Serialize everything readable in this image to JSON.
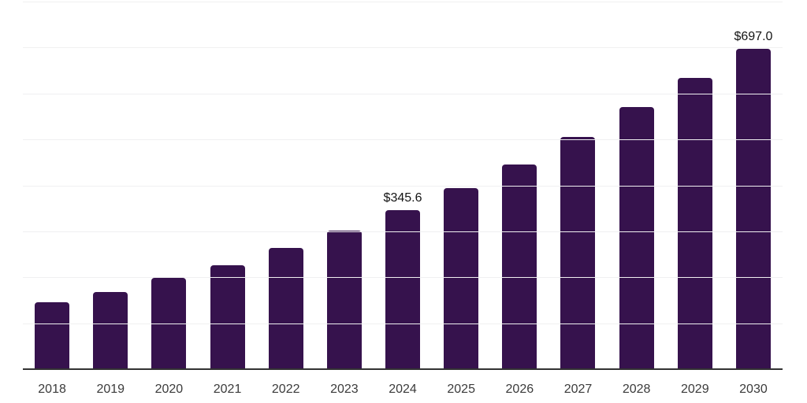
{
  "chart_data": {
    "type": "bar",
    "title": "",
    "xlabel": "",
    "ylabel": "",
    "categories": [
      "2018",
      "2019",
      "2020",
      "2021",
      "2022",
      "2023",
      "2024",
      "2025",
      "2026",
      "2027",
      "2028",
      "2029",
      "2030"
    ],
    "values": [
      146,
      168,
      198,
      227,
      263,
      302,
      345.6,
      394,
      446,
      505,
      570,
      634,
      697
    ],
    "data_labels": [
      "",
      "",
      "",
      "",
      "",
      "",
      "$345.6",
      "",
      "",
      "",
      "",
      "",
      "$697.0"
    ],
    "ylim": [
      0,
      800
    ],
    "gridline_step": 100,
    "grid": "horizontal",
    "legend_position": "none",
    "colors": {
      "bar": "#36124d",
      "gridline": "#f0f0f1",
      "axis_line": "#333333",
      "tick_label": "#3b3b3b",
      "data_label": "#141414",
      "background": "#ffffff"
    }
  }
}
